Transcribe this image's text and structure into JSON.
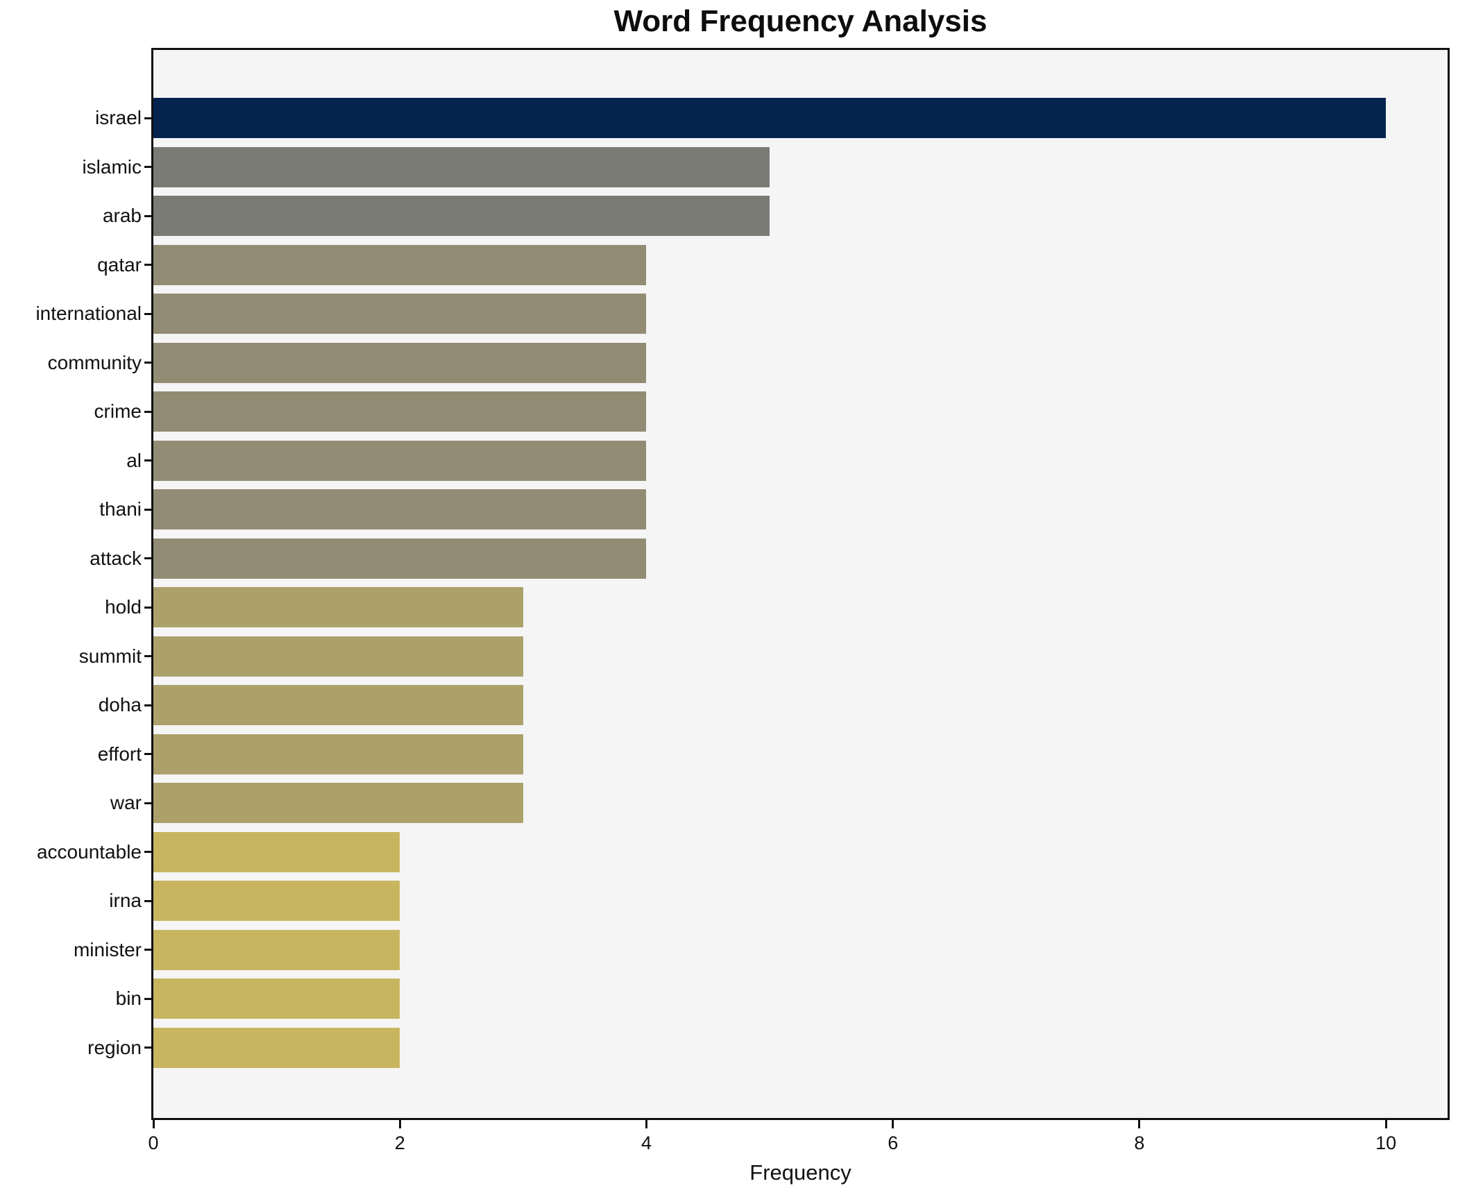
{
  "chart_data": {
    "type": "bar",
    "orientation": "horizontal",
    "title": "Word Frequency Analysis",
    "xlabel": "Frequency",
    "ylabel": "",
    "categories": [
      "israel",
      "islamic",
      "arab",
      "qatar",
      "international",
      "community",
      "crime",
      "al",
      "thani",
      "attack",
      "hold",
      "summit",
      "doha",
      "effort",
      "war",
      "accountable",
      "irna",
      "minister",
      "bin",
      "region"
    ],
    "values": [
      10,
      5,
      5,
      4,
      4,
      4,
      4,
      4,
      4,
      4,
      3,
      3,
      3,
      3,
      3,
      2,
      2,
      2,
      2,
      2
    ],
    "bar_colors": [
      "#04234e",
      "#7a7b75",
      "#7a7b75",
      "#938c74",
      "#938c74",
      "#938c74",
      "#938c74",
      "#938c74",
      "#938c74",
      "#938c74",
      "#aca06b",
      "#aca06b",
      "#aca06b",
      "#aca06b",
      "#aca06b",
      "#c8b560",
      "#c8b560",
      "#c8b560",
      "#c8b560",
      "#c8b560"
    ],
    "xlim": [
      0,
      10.5
    ],
    "x_ticks": [
      "0",
      "2",
      "4",
      "6",
      "8",
      "10"
    ],
    "grid": false,
    "legend": null,
    "plot_background": "#f5f5f6",
    "figure_background": "#ffffff",
    "axis_color": "#111111",
    "text_color": "#111111"
  }
}
